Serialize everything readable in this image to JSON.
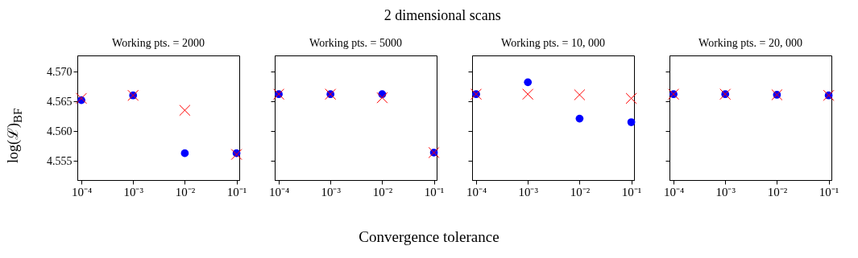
{
  "chart_data": [
    {
      "type": "scatter",
      "title": "Working pts. = 2000",
      "annotations": [
        "2 dimensional scans",
        "Convergence tolerance"
      ],
      "ylabel": "log(ℒ)$_{BF}$",
      "log": "x",
      "grid": false,
      "x": [
        0.0001,
        0.001,
        0.01,
        0.1
      ],
      "xlim": [
        8.35e-05,
        0.113
      ],
      "ylim": [
        4.5518,
        4.5727
      ],
      "xticks": [
        {
          "value": 0.0001,
          "label": "10⁻⁴"
        },
        {
          "value": 0.001,
          "label": "10⁻³"
        },
        {
          "value": 0.01,
          "label": "10⁻²"
        },
        {
          "value": 0.1,
          "label": "10⁻¹"
        }
      ],
      "yticks": [
        {
          "value": 4.555,
          "label": "4.555"
        },
        {
          "value": 4.56,
          "label": "4.560"
        },
        {
          "value": 4.565,
          "label": "4.565"
        },
        {
          "value": 4.57,
          "label": "4.570"
        }
      ],
      "series": [
        {
          "color": "#0000ff",
          "marker": "circle",
          "values": [
            4.5652,
            4.566,
            4.5563,
            4.5563
          ]
        },
        {
          "color": "#ff0000",
          "marker": "cross",
          "values": [
            4.5655,
            4.566,
            4.5635,
            4.5561
          ]
        }
      ]
    },
    {
      "type": "scatter",
      "title": "Working pts. = 5000",
      "log": "x",
      "grid": false,
      "tick_labels": "x",
      "x": [
        0.0001,
        0.001,
        0.01,
        0.1
      ],
      "xlim": [
        8.35e-05,
        0.113
      ],
      "ylim": [
        4.5518,
        4.5727
      ],
      "xticks": [
        {
          "value": 0.0001,
          "label": "10⁻⁴"
        },
        {
          "value": 0.001,
          "label": "10⁻³"
        },
        {
          "value": 0.01,
          "label": "10⁻²"
        },
        {
          "value": 0.1,
          "label": "10⁻¹"
        }
      ],
      "yticks": [
        {
          "value": 4.555,
          "label": null
        },
        {
          "value": 4.56,
          "label": null
        },
        {
          "value": 4.565,
          "label": null
        },
        {
          "value": 4.57,
          "label": null
        }
      ],
      "series": [
        {
          "color": "#0000ff",
          "marker": "circle",
          "values": [
            4.5662,
            4.5662,
            4.5662,
            4.5564
          ]
        },
        {
          "color": "#ff0000",
          "marker": "cross",
          "values": [
            4.5662,
            4.5662,
            4.5656,
            4.5564
          ]
        }
      ]
    },
    {
      "type": "scatter",
      "title": "Working pts. = 10, 000",
      "log": "x",
      "grid": false,
      "tick_labels": "x",
      "x": [
        0.0001,
        0.001,
        0.01,
        0.1
      ],
      "xlim": [
        8.35e-05,
        0.113
      ],
      "ylim": [
        4.5518,
        4.5727
      ],
      "xticks": [
        {
          "value": 0.0001,
          "label": "10⁻⁴"
        },
        {
          "value": 0.001,
          "label": "10⁻³"
        },
        {
          "value": 0.01,
          "label": "10⁻²"
        },
        {
          "value": 0.1,
          "label": "10⁻¹"
        }
      ],
      "yticks": [
        {
          "value": 4.555,
          "label": null
        },
        {
          "value": 4.56,
          "label": null
        },
        {
          "value": 4.565,
          "label": null
        },
        {
          "value": 4.57,
          "label": null
        }
      ],
      "series": [
        {
          "color": "#0000ff",
          "marker": "circle",
          "values": [
            4.5662,
            4.5682,
            4.5621,
            4.5615
          ]
        },
        {
          "color": "#ff0000",
          "marker": "cross",
          "values": [
            4.5662,
            4.5662,
            4.5661,
            4.5655
          ]
        }
      ]
    },
    {
      "type": "scatter",
      "title": "Working pts. = 20, 000",
      "log": "x",
      "grid": false,
      "tick_labels": "x",
      "x": [
        0.0001,
        0.001,
        0.01,
        0.1
      ],
      "xlim": [
        8.35e-05,
        0.113
      ],
      "ylim": [
        4.5518,
        4.5727
      ],
      "xticks": [
        {
          "value": 0.0001,
          "label": "10⁻⁴"
        },
        {
          "value": 0.001,
          "label": "10⁻³"
        },
        {
          "value": 0.01,
          "label": "10⁻²"
        },
        {
          "value": 0.1,
          "label": "10⁻¹"
        }
      ],
      "yticks": [
        {
          "value": 4.555,
          "label": null
        },
        {
          "value": 4.56,
          "label": null
        },
        {
          "value": 4.565,
          "label": null
        },
        {
          "value": 4.57,
          "label": null
        }
      ],
      "series": [
        {
          "color": "#0000ff",
          "marker": "circle",
          "values": [
            4.5662,
            4.5662,
            4.5661,
            4.566
          ]
        },
        {
          "color": "#ff0000",
          "marker": "cross",
          "values": [
            4.5662,
            4.5662,
            4.5661,
            4.566
          ]
        }
      ]
    }
  ]
}
